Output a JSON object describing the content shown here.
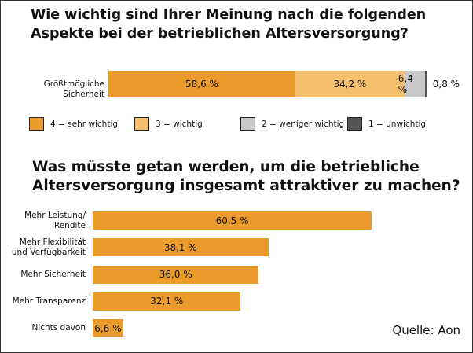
{
  "titles": {
    "top": [
      "Wie wichtig sind Ihrer Meinung nach die folgenden",
      "Aspekte bei der betrieblichen Altersversorgung?"
    ],
    "bottom": [
      "Was müsste getan werden, um die betriebliche",
      "Altersversorgung insgesamt attraktiver zu machen?"
    ]
  },
  "source": "Quelle: Aon",
  "chart_data": [
    {
      "type": "bar",
      "stacked": true,
      "orientation": "horizontal",
      "categories": [
        "Größtmögliche Sicherheit"
      ],
      "series": [
        {
          "name": "4 = sehr wichtig",
          "values": [
            58.6
          ],
          "label": "58,6 %",
          "color": "#ea9b2b"
        },
        {
          "name": "3 = wichtig",
          "values": [
            34.2
          ],
          "label": "34,2 %",
          "color": "#f5c06e"
        },
        {
          "name": "2 = weniger wichtig",
          "values": [
            6.4
          ],
          "label": "6,4 %",
          "color": "#c8c8c8"
        },
        {
          "name": "1 = unwichtig",
          "values": [
            0.8
          ],
          "label": "0,8 %",
          "color": "#555555"
        }
      ],
      "legend": "bottom"
    },
    {
      "type": "bar",
      "orientation": "horizontal",
      "categories": [
        [
          "Mehr Leistung/",
          "Rendite"
        ],
        [
          "Mehr Flexibilität",
          "und Verfügbarkeit"
        ],
        [
          "Mehr Sicherheit"
        ],
        [
          "Mehr Transparenz"
        ],
        [
          "Nichts davon"
        ]
      ],
      "values": [
        60.5,
        38.1,
        36.0,
        32.1,
        6.6
      ],
      "labels": [
        "60,5 %",
        "38,1 %",
        "36,0 %",
        "32,1 %",
        "6,6 %"
      ],
      "color": "#ea9b2b"
    }
  ]
}
